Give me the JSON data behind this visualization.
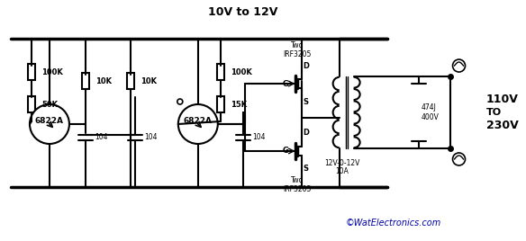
{
  "title": "10V to 12V",
  "background_color": "#ffffff",
  "line_color": "#000000",
  "text_color": "#000000",
  "copyright_text": "©WatElectronics.com",
  "copyright_color": "#0000aa",
  "output_labels": [
    "110V",
    "TO",
    "230V"
  ],
  "transformer_label": "12V-0-12V\n10A",
  "cap_label": "474J\n400V",
  "resistors": {
    "R1": "100K",
    "R2": "50K",
    "R3": "10K",
    "R4": "10K",
    "R5": "100K",
    "R6": "15K"
  },
  "transistors": [
    "6822A",
    "6822A"
  ],
  "mosfets": [
    "Two\nIRF3205",
    "Two\nIRF3205"
  ],
  "cap_labels": [
    "104",
    "104",
    "104"
  ]
}
